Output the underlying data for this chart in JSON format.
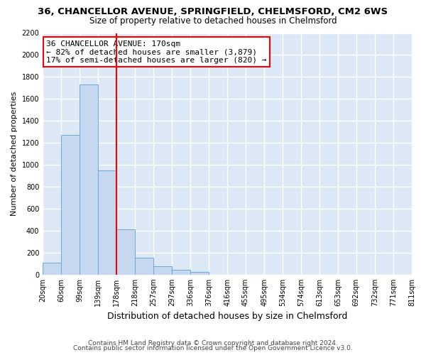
{
  "title1": "36, CHANCELLOR AVENUE, SPRINGFIELD, CHELMSFORD, CM2 6WS",
  "title2": "Size of property relative to detached houses in Chelmsford",
  "xlabel": "Distribution of detached houses by size in Chelmsford",
  "ylabel": "Number of detached properties",
  "footnote1": "Contains HM Land Registry data © Crown copyright and database right 2024.",
  "footnote2": "Contains public sector information licensed under the Open Government Licence v3.0.",
  "bin_edges": [
    20,
    60,
    99,
    139,
    178,
    218,
    257,
    297,
    336,
    376,
    416,
    455,
    495,
    534,
    574,
    613,
    653,
    692,
    732,
    771,
    811
  ],
  "bar_heights": [
    110,
    1270,
    1730,
    950,
    415,
    155,
    75,
    42,
    25,
    0,
    0,
    0,
    0,
    0,
    0,
    0,
    0,
    0,
    0,
    0
  ],
  "bar_color": "#c5d8f0",
  "bar_edgecolor": "#6aaad4",
  "background_color": "#dce8f5",
  "grid_color": "#ffffff",
  "fig_background": "#ffffff",
  "red_line_x": 178,
  "annotation_line1": "36 CHANCELLOR AVENUE: 170sqm",
  "annotation_line2": "← 82% of detached houses are smaller (3,879)",
  "annotation_line3": "17% of semi-detached houses are larger (820) →",
  "ylim": [
    0,
    2200
  ],
  "yticks": [
    0,
    200,
    400,
    600,
    800,
    1000,
    1200,
    1400,
    1600,
    1800,
    2000,
    2200
  ],
  "title1_fontsize": 9.5,
  "title2_fontsize": 8.5,
  "xlabel_fontsize": 9,
  "ylabel_fontsize": 8,
  "tick_fontsize": 7,
  "footnote_fontsize": 6.5,
  "annotation_fontsize": 8
}
